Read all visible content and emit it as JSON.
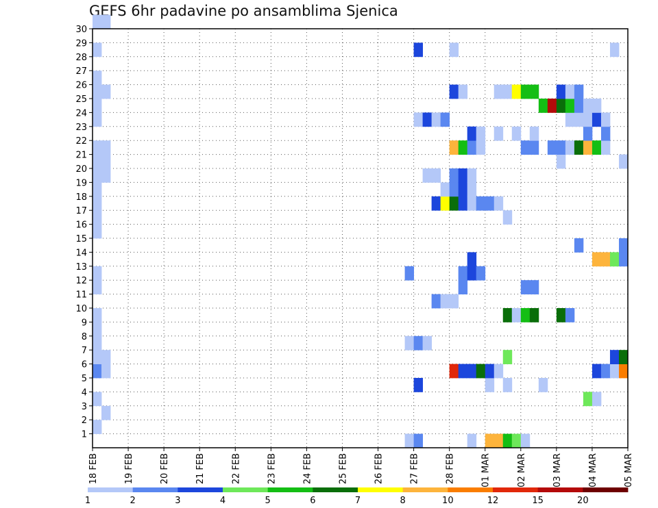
{
  "chart_data": {
    "type": "heatmap",
    "title": "GEFS 6hr padavine po ansamblima Sjenica",
    "y_ticks": [
      "1",
      "2",
      "3",
      "4",
      "5",
      "6",
      "7",
      "8",
      "9",
      "10",
      "11",
      "12",
      "13",
      "14",
      "15",
      "16",
      "17",
      "18",
      "19",
      "20",
      "21",
      "22",
      "23",
      "24",
      "25",
      "26",
      "27",
      "28",
      "29",
      "30"
    ],
    "ylim": [
      0,
      30
    ],
    "x_ticks": [
      "18 FEB",
      "19 FEB",
      "20 FEB",
      "21 FEB",
      "22 FEB",
      "23 FEB",
      "24 FEB",
      "25 FEB",
      "26 FEB",
      "27 FEB",
      "28 FEB",
      "01 MAR",
      "02 MAR",
      "03 MAR",
      "04 MAR",
      "05 MAR"
    ],
    "x_steps_per_day": 4,
    "grid": true,
    "legend": {
      "placement": "bottom",
      "colors": [
        "#b4c8f8",
        "#5a87f0",
        "#1c46dc",
        "#6ee85a",
        "#14be14",
        "#0a6e0a",
        "#ffff00",
        "#fdb43c",
        "#fa7d00",
        "#e1280a",
        "#b40a0a",
        "#6e0000"
      ],
      "labels": [
        "1",
        "2",
        "3",
        "4",
        "5",
        "6",
        "7",
        "8",
        "10",
        "12",
        "15",
        "20"
      ]
    },
    "cells": [
      {
        "x": 0,
        "y": 1,
        "c": 0
      },
      {
        "x": 0,
        "y": 3,
        "c": 0
      },
      {
        "x": 0,
        "y": 5,
        "c": 1
      },
      {
        "x": 0,
        "y": 6,
        "c": 0
      },
      {
        "x": 0,
        "y": 7,
        "c": 0
      },
      {
        "x": 0,
        "y": 8,
        "c": 0
      },
      {
        "x": 0,
        "y": 9,
        "c": 0
      },
      {
        "x": 0,
        "y": 11,
        "c": 0
      },
      {
        "x": 0,
        "y": 12,
        "c": 0
      },
      {
        "x": 0,
        "y": 15,
        "c": 0
      },
      {
        "x": 0,
        "y": 16,
        "c": 0
      },
      {
        "x": 0,
        "y": 17,
        "c": 0
      },
      {
        "x": 0,
        "y": 18,
        "c": 0
      },
      {
        "x": 0,
        "y": 19,
        "c": 0
      },
      {
        "x": 0,
        "y": 20,
        "c": 0
      },
      {
        "x": 0,
        "y": 21,
        "c": 0
      },
      {
        "x": 0,
        "y": 23,
        "c": 0
      },
      {
        "x": 0,
        "y": 24,
        "c": 0
      },
      {
        "x": 0,
        "y": 25,
        "c": 0
      },
      {
        "x": 0,
        "y": 26,
        "c": 0
      },
      {
        "x": 0,
        "y": 28,
        "c": 0
      },
      {
        "x": 0,
        "y": 30,
        "c": 0
      },
      {
        "x": 1,
        "y": 2,
        "c": 0
      },
      {
        "x": 1,
        "y": 5,
        "c": 0
      },
      {
        "x": 1,
        "y": 6,
        "c": 0
      },
      {
        "x": 1,
        "y": 19,
        "c": 0
      },
      {
        "x": 1,
        "y": 20,
        "c": 0
      },
      {
        "x": 1,
        "y": 21,
        "c": 0
      },
      {
        "x": 1,
        "y": 25,
        "c": 0
      },
      {
        "x": 1,
        "y": 30,
        "c": 0
      },
      {
        "x": 35,
        "y": 0,
        "c": 0
      },
      {
        "x": 35,
        "y": 7,
        "c": 0
      },
      {
        "x": 35,
        "y": 12,
        "c": 1
      },
      {
        "x": 36,
        "y": 0,
        "c": 1
      },
      {
        "x": 36,
        "y": 4,
        "c": 2
      },
      {
        "x": 36,
        "y": 7,
        "c": 1
      },
      {
        "x": 36,
        "y": 23,
        "c": 0
      },
      {
        "x": 36,
        "y": 28,
        "c": 2
      },
      {
        "x": 37,
        "y": 7,
        "c": 0
      },
      {
        "x": 37,
        "y": 19,
        "c": 0
      },
      {
        "x": 37,
        "y": 23,
        "c": 2
      },
      {
        "x": 38,
        "y": 10,
        "c": 1
      },
      {
        "x": 38,
        "y": 17,
        "c": 2
      },
      {
        "x": 38,
        "y": 19,
        "c": 0
      },
      {
        "x": 38,
        "y": 23,
        "c": 0
      },
      {
        "x": 39,
        "y": 10,
        "c": 0
      },
      {
        "x": 39,
        "y": 17,
        "c": 6
      },
      {
        "x": 39,
        "y": 18,
        "c": 0
      },
      {
        "x": 39,
        "y": 23,
        "c": 1
      },
      {
        "x": 40,
        "y": 5,
        "c": 9
      },
      {
        "x": 40,
        "y": 10,
        "c": 0
      },
      {
        "x": 40,
        "y": 17,
        "c": 5
      },
      {
        "x": 40,
        "y": 18,
        "c": 1
      },
      {
        "x": 40,
        "y": 19,
        "c": 1
      },
      {
        "x": 40,
        "y": 21,
        "c": 7
      },
      {
        "x": 40,
        "y": 25,
        "c": 2
      },
      {
        "x": 40,
        "y": 28,
        "c": 0
      },
      {
        "x": 41,
        "y": 5,
        "c": 2
      },
      {
        "x": 41,
        "y": 11,
        "c": 1
      },
      {
        "x": 41,
        "y": 12,
        "c": 1
      },
      {
        "x": 41,
        "y": 17,
        "c": 2
      },
      {
        "x": 41,
        "y": 18,
        "c": 2
      },
      {
        "x": 41,
        "y": 19,
        "c": 2
      },
      {
        "x": 41,
        "y": 21,
        "c": 4
      },
      {
        "x": 41,
        "y": 25,
        "c": 0
      },
      {
        "x": 42,
        "y": 0,
        "c": 0
      },
      {
        "x": 42,
        "y": 5,
        "c": 2
      },
      {
        "x": 42,
        "y": 12,
        "c": 2
      },
      {
        "x": 42,
        "y": 13,
        "c": 2
      },
      {
        "x": 42,
        "y": 17,
        "c": 0
      },
      {
        "x": 42,
        "y": 18,
        "c": 0
      },
      {
        "x": 42,
        "y": 19,
        "c": 0
      },
      {
        "x": 42,
        "y": 21,
        "c": 1
      },
      {
        "x": 42,
        "y": 22,
        "c": 2
      },
      {
        "x": 43,
        "y": 5,
        "c": 5
      },
      {
        "x": 43,
        "y": 12,
        "c": 1
      },
      {
        "x": 43,
        "y": 17,
        "c": 1
      },
      {
        "x": 43,
        "y": 21,
        "c": 0
      },
      {
        "x": 43,
        "y": 22,
        "c": 0
      },
      {
        "x": 44,
        "y": 0,
        "c": 7
      },
      {
        "x": 44,
        "y": 4,
        "c": 0
      },
      {
        "x": 44,
        "y": 5,
        "c": 2
      },
      {
        "x": 44,
        "y": 17,
        "c": 1
      },
      {
        "x": 45,
        "y": 0,
        "c": 7
      },
      {
        "x": 45,
        "y": 5,
        "c": 0
      },
      {
        "x": 45,
        "y": 17,
        "c": 0
      },
      {
        "x": 45,
        "y": 22,
        "c": 0
      },
      {
        "x": 45,
        "y": 25,
        "c": 0
      },
      {
        "x": 46,
        "y": 0,
        "c": 4
      },
      {
        "x": 46,
        "y": 4,
        "c": 0
      },
      {
        "x": 46,
        "y": 6,
        "c": 3
      },
      {
        "x": 46,
        "y": 9,
        "c": 5
      },
      {
        "x": 46,
        "y": 16,
        "c": 0
      },
      {
        "x": 46,
        "y": 25,
        "c": 0
      },
      {
        "x": 47,
        "y": 0,
        "c": 3
      },
      {
        "x": 47,
        "y": 9,
        "c": 0
      },
      {
        "x": 47,
        "y": 22,
        "c": 0
      },
      {
        "x": 47,
        "y": 25,
        "c": 6
      },
      {
        "x": 48,
        "y": 0,
        "c": 0
      },
      {
        "x": 48,
        "y": 9,
        "c": 4
      },
      {
        "x": 48,
        "y": 11,
        "c": 1
      },
      {
        "x": 48,
        "y": 21,
        "c": 1
      },
      {
        "x": 48,
        "y": 25,
        "c": 4
      },
      {
        "x": 49,
        "y": 9,
        "c": 5
      },
      {
        "x": 49,
        "y": 11,
        "c": 1
      },
      {
        "x": 49,
        "y": 21,
        "c": 1
      },
      {
        "x": 49,
        "y": 22,
        "c": 0
      },
      {
        "x": 49,
        "y": 25,
        "c": 4
      },
      {
        "x": 50,
        "y": 4,
        "c": 0
      },
      {
        "x": 50,
        "y": 24,
        "c": 4
      },
      {
        "x": 51,
        "y": 21,
        "c": 1
      },
      {
        "x": 51,
        "y": 24,
        "c": 10
      },
      {
        "x": 52,
        "y": 9,
        "c": 5
      },
      {
        "x": 52,
        "y": 20,
        "c": 0
      },
      {
        "x": 52,
        "y": 21,
        "c": 1
      },
      {
        "x": 52,
        "y": 24,
        "c": 5
      },
      {
        "x": 52,
        "y": 25,
        "c": 2
      },
      {
        "x": 53,
        "y": 9,
        "c": 1
      },
      {
        "x": 53,
        "y": 21,
        "c": 0
      },
      {
        "x": 53,
        "y": 23,
        "c": 0
      },
      {
        "x": 53,
        "y": 24,
        "c": 4
      },
      {
        "x": 53,
        "y": 25,
        "c": 0
      },
      {
        "x": 54,
        "y": 14,
        "c": 1
      },
      {
        "x": 54,
        "y": 21,
        "c": 5
      },
      {
        "x": 54,
        "y": 23,
        "c": 0
      },
      {
        "x": 54,
        "y": 24,
        "c": 1
      },
      {
        "x": 54,
        "y": 25,
        "c": 1
      },
      {
        "x": 55,
        "y": 3,
        "c": 3
      },
      {
        "x": 55,
        "y": 21,
        "c": 7
      },
      {
        "x": 55,
        "y": 22,
        "c": 1
      },
      {
        "x": 55,
        "y": 23,
        "c": 0
      },
      {
        "x": 55,
        "y": 24,
        "c": 0
      },
      {
        "x": 56,
        "y": 3,
        "c": 0
      },
      {
        "x": 56,
        "y": 5,
        "c": 2
      },
      {
        "x": 56,
        "y": 13,
        "c": 7
      },
      {
        "x": 56,
        "y": 21,
        "c": 4
      },
      {
        "x": 56,
        "y": 23,
        "c": 2
      },
      {
        "x": 56,
        "y": 24,
        "c": 0
      },
      {
        "x": 57,
        "y": 5,
        "c": 1
      },
      {
        "x": 57,
        "y": 13,
        "c": 7
      },
      {
        "x": 57,
        "y": 21,
        "c": 0
      },
      {
        "x": 57,
        "y": 22,
        "c": 1
      },
      {
        "x": 57,
        "y": 23,
        "c": 0
      },
      {
        "x": 58,
        "y": 5,
        "c": 0
      },
      {
        "x": 58,
        "y": 6,
        "c": 2
      },
      {
        "x": 58,
        "y": 13,
        "c": 3
      },
      {
        "x": 58,
        "y": 28,
        "c": 0
      },
      {
        "x": 59,
        "y": 5,
        "c": 8
      },
      {
        "x": 59,
        "y": 6,
        "c": 5
      },
      {
        "x": 59,
        "y": 13,
        "c": 1
      },
      {
        "x": 59,
        "y": 14,
        "c": 1
      },
      {
        "x": 59,
        "y": 20,
        "c": 0
      }
    ]
  }
}
